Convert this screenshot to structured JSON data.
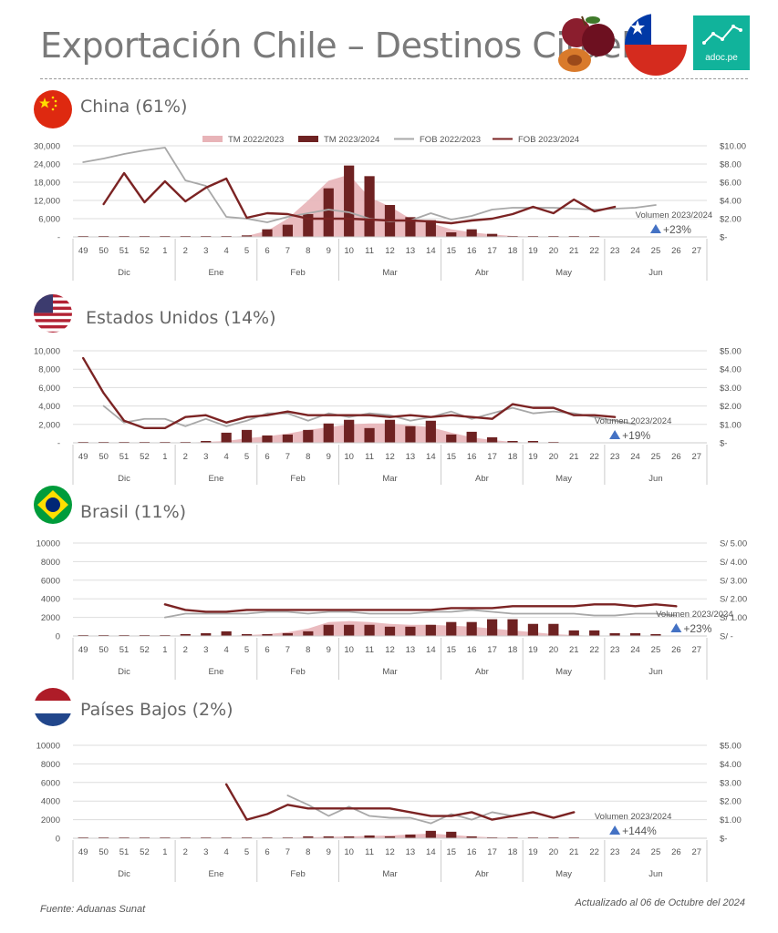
{
  "page": {
    "title": "Exportación Chile – Destinos Ciruela",
    "logo_text": "adoc.pe",
    "source": "Fuente: Aduanas Sunat",
    "updated": "Actualizado al 06 de Octubre del 2024"
  },
  "colors": {
    "tm_prev": "#e8b4b8",
    "tm_curr": "#6e2222",
    "fob_prev": "#a8a8a8",
    "fob_curr": "#7b2323",
    "arrow": "#4472c4",
    "grid": "#dddddd",
    "adoc": "#11b39b"
  },
  "legend": [
    "TM 2022/2023",
    "TM 2023/2024",
    "FOB 2022/2023",
    "FOB 2023/2024"
  ],
  "chart_data": [
    {
      "type": "bar+line",
      "title": "China (61%)",
      "flag": "china-flag",
      "weeks": [
        "49",
        "50",
        "51",
        "52",
        "1",
        "2",
        "3",
        "4",
        "5",
        "6",
        "7",
        "8",
        "9",
        "10",
        "11",
        "12",
        "13",
        "14",
        "15",
        "16",
        "17",
        "18",
        "19",
        "20",
        "21",
        "22",
        "23",
        "24",
        "25",
        "26",
        "27"
      ],
      "months": [
        {
          "label": "Dic",
          "start": 0,
          "end": 4
        },
        {
          "label": "Ene",
          "start": 5,
          "end": 8
        },
        {
          "label": "Feb",
          "start": 9,
          "end": 12
        },
        {
          "label": "Mar",
          "start": 13,
          "end": 17
        },
        {
          "label": "Abr",
          "start": 18,
          "end": 21
        },
        {
          "label": "May",
          "start": 22,
          "end": 25
        },
        {
          "label": "Jun",
          "start": 26,
          "end": 30
        }
      ],
      "y_left_ticks": [
        "30,000",
        "24,000",
        "18,000",
        "12,000",
        "6,000",
        "-"
      ],
      "y_left_max": 30000,
      "y_right_ticks": [
        "$10.00",
        "$8.00",
        "$6.00",
        "$4.00",
        "$2.00",
        "$-"
      ],
      "y_right_max": 10,
      "tm_2022_2023": [
        0,
        0,
        0,
        0,
        0,
        0,
        0,
        0,
        300,
        2000,
        6000,
        12000,
        18500,
        20500,
        13000,
        10000,
        6000,
        4500,
        2500,
        1500,
        800,
        300,
        100,
        0,
        0,
        0,
        0,
        0,
        0,
        0,
        0
      ],
      "tm_2023_2024": [
        0,
        100,
        100,
        100,
        100,
        100,
        100,
        200,
        500,
        2500,
        4000,
        7500,
        16000,
        23500,
        20000,
        10500,
        6500,
        5500,
        1500,
        2500,
        1000,
        300,
        100,
        100,
        100,
        100,
        null,
        null,
        null,
        null,
        null
      ],
      "fob_2022_2023": [
        8.2,
        8.6,
        9.1,
        9.5,
        9.8,
        6.2,
        5.6,
        2.2,
        2.0,
        1.6,
        2.2,
        2.6,
        3.0,
        2.7,
        2.0,
        1.7,
        1.8,
        2.6,
        1.9,
        2.3,
        3.0,
        3.2,
        3.2,
        3.2,
        3.1,
        3.0,
        3.1,
        3.2,
        3.5,
        null,
        null
      ],
      "fob_2023_2024": [
        null,
        3.6,
        7.0,
        3.8,
        6.1,
        3.9,
        5.4,
        6.4,
        2.1,
        2.6,
        2.5,
        2.0,
        2.0,
        2.0,
        1.9,
        1.8,
        1.8,
        1.7,
        1.5,
        1.8,
        2.0,
        2.5,
        3.3,
        2.6,
        4.1,
        2.8,
        3.3,
        null,
        null,
        null,
        null
      ],
      "annotation_label": "Volumen 2023/2024",
      "annotation_value": "+23%",
      "annotation_week_index": 28
    },
    {
      "type": "bar+line",
      "title": "Estados Unidos (14%)",
      "flag": "usa-flag",
      "weeks": [
        "49",
        "50",
        "51",
        "52",
        "1",
        "2",
        "3",
        "4",
        "5",
        "6",
        "7",
        "8",
        "9",
        "10",
        "11",
        "12",
        "13",
        "14",
        "15",
        "16",
        "17",
        "18",
        "19",
        "20",
        "21",
        "22",
        "23",
        "24",
        "25",
        "26",
        "27"
      ],
      "months": [
        {
          "label": "Dic",
          "start": 0,
          "end": 4
        },
        {
          "label": "Ene",
          "start": 5,
          "end": 8
        },
        {
          "label": "Feb",
          "start": 9,
          "end": 12
        },
        {
          "label": "Mar",
          "start": 13,
          "end": 17
        },
        {
          "label": "Abr",
          "start": 18,
          "end": 21
        },
        {
          "label": "May",
          "start": 22,
          "end": 25
        },
        {
          "label": "Jun",
          "start": 26,
          "end": 30
        }
      ],
      "y_left_ticks": [
        "10,000",
        "8,000",
        "6,000",
        "4,000",
        "2,000",
        "-"
      ],
      "y_left_max": 10000,
      "y_right_ticks": [
        "$5.00",
        "$4.00",
        "$3.00",
        "$2.00",
        "$1.00",
        "$-"
      ],
      "y_right_max": 5,
      "tm_2022_2023": [
        0,
        0,
        0,
        0,
        0,
        0,
        100,
        200,
        500,
        700,
        1000,
        1400,
        1700,
        2000,
        2100,
        2100,
        1900,
        1700,
        1100,
        600,
        300,
        100,
        0,
        0,
        0,
        0,
        0,
        0,
        0,
        0,
        0
      ],
      "tm_2023_2024": [
        0,
        0,
        0,
        0,
        0,
        0,
        200,
        1100,
        1400,
        800,
        900,
        1400,
        2100,
        2500,
        1600,
        2500,
        1800,
        2400,
        900,
        1200,
        600,
        200,
        200,
        100,
        null,
        null,
        null,
        null,
        null,
        null,
        null
      ],
      "fob_2022_2023": [
        null,
        2.0,
        1.1,
        1.3,
        1.3,
        0.9,
        1.3,
        0.9,
        1.2,
        1.6,
        1.6,
        1.2,
        1.6,
        1.4,
        1.6,
        1.5,
        1.2,
        1.4,
        1.7,
        1.3,
        1.6,
        1.9,
        1.6,
        1.7,
        1.6,
        1.4,
        1.2,
        1.0,
        null,
        null,
        null
      ],
      "fob_2023_2024": [
        4.6,
        2.7,
        1.2,
        0.8,
        0.8,
        1.4,
        1.5,
        1.1,
        1.4,
        1.5,
        1.7,
        1.5,
        1.5,
        1.5,
        1.5,
        1.4,
        1.5,
        1.4,
        1.5,
        1.4,
        1.3,
        2.1,
        1.9,
        1.9,
        1.5,
        1.5,
        1.4,
        null,
        null,
        null,
        null
      ],
      "annotation_label": "Volumen 2023/2024",
      "annotation_value": "+19%",
      "annotation_week_index": 26
    },
    {
      "type": "bar+line",
      "title": "Brasil (11%)",
      "flag": "brazil-flag",
      "weeks": [
        "49",
        "50",
        "51",
        "52",
        "1",
        "2",
        "3",
        "4",
        "5",
        "6",
        "7",
        "8",
        "9",
        "10",
        "11",
        "12",
        "13",
        "14",
        "15",
        "16",
        "17",
        "18",
        "19",
        "20",
        "21",
        "22",
        "23",
        "24",
        "25",
        "26",
        "27"
      ],
      "months": [
        {
          "label": "Dic",
          "start": 0,
          "end": 4
        },
        {
          "label": "Ene",
          "start": 5,
          "end": 8
        },
        {
          "label": "Feb",
          "start": 9,
          "end": 12
        },
        {
          "label": "Mar",
          "start": 13,
          "end": 17
        },
        {
          "label": "Abr",
          "start": 18,
          "end": 21
        },
        {
          "label": "May",
          "start": 22,
          "end": 25
        },
        {
          "label": "Jun",
          "start": 26,
          "end": 30
        }
      ],
      "y_left_ticks": [
        "10000",
        "8000",
        "6000",
        "4000",
        "2000",
        "0"
      ],
      "y_left_max": 10000,
      "y_right_ticks": [
        "S/ 5.00",
        "S/ 4.00",
        "S/ 3.00",
        "S/ 2.00",
        "S/ 1.00",
        "S/ -"
      ],
      "y_right_max": 5,
      "tm_2022_2023": [
        0,
        0,
        0,
        0,
        0,
        0,
        0,
        0,
        100,
        200,
        400,
        800,
        1500,
        1600,
        1500,
        1300,
        1200,
        1200,
        1100,
        1000,
        800,
        600,
        400,
        200,
        100,
        0,
        0,
        0,
        0,
        0,
        0
      ],
      "tm_2023_2024": [
        0,
        0,
        0,
        0,
        0,
        200,
        300,
        500,
        200,
        200,
        300,
        500,
        1200,
        1200,
        1200,
        1000,
        1000,
        1200,
        1500,
        1500,
        1800,
        1800,
        1300,
        1300,
        600,
        600,
        300,
        300,
        200,
        null,
        null
      ],
      "fob_2022_2023": [
        null,
        null,
        null,
        null,
        1.0,
        1.2,
        1.2,
        1.2,
        1.2,
        1.3,
        1.3,
        1.2,
        1.3,
        1.3,
        1.2,
        1.2,
        1.2,
        1.3,
        1.3,
        1.4,
        1.3,
        1.2,
        1.2,
        1.2,
        1.2,
        1.1,
        1.1,
        1.2,
        1.2,
        1.1,
        null
      ],
      "fob_2023_2024": [
        null,
        null,
        null,
        null,
        1.7,
        1.4,
        1.3,
        1.3,
        1.4,
        1.4,
        1.4,
        1.4,
        1.4,
        1.4,
        1.4,
        1.4,
        1.4,
        1.4,
        1.5,
        1.5,
        1.5,
        1.6,
        1.6,
        1.6,
        1.6,
        1.7,
        1.7,
        1.6,
        1.7,
        1.6,
        null
      ],
      "annotation_label": "Volumen 2023/2024",
      "annotation_value": "+23%",
      "annotation_week_index": 29
    },
    {
      "type": "bar+line",
      "title": "Países Bajos (2%)",
      "flag": "netherlands-flag",
      "weeks": [
        "49",
        "50",
        "51",
        "52",
        "1",
        "2",
        "3",
        "4",
        "5",
        "6",
        "7",
        "8",
        "9",
        "10",
        "11",
        "12",
        "13",
        "14",
        "15",
        "16",
        "17",
        "18",
        "19",
        "20",
        "21",
        "22",
        "23",
        "24",
        "25",
        "26",
        "27"
      ],
      "months": [
        {
          "label": "Dic",
          "start": 0,
          "end": 4
        },
        {
          "label": "Ene",
          "start": 5,
          "end": 8
        },
        {
          "label": "Feb",
          "start": 9,
          "end": 12
        },
        {
          "label": "Mar",
          "start": 13,
          "end": 17
        },
        {
          "label": "Abr",
          "start": 18,
          "end": 21
        },
        {
          "label": "May",
          "start": 22,
          "end": 25
        },
        {
          "label": "Jun",
          "start": 26,
          "end": 30
        }
      ],
      "y_left_ticks": [
        "10000",
        "8000",
        "6000",
        "4000",
        "2000",
        "0"
      ],
      "y_left_max": 10000,
      "y_right_ticks": [
        "$5.00",
        "$4.00",
        "$3.00",
        "$2.00",
        "$1.00",
        "$-"
      ],
      "y_right_max": 5,
      "tm_2022_2023": [
        0,
        0,
        0,
        0,
        0,
        0,
        0,
        0,
        0,
        0,
        50,
        100,
        150,
        200,
        250,
        300,
        400,
        500,
        350,
        200,
        100,
        50,
        0,
        0,
        0,
        0,
        0,
        0,
        0,
        0,
        0
      ],
      "tm_2023_2024": [
        0,
        0,
        0,
        0,
        0,
        0,
        0,
        100,
        100,
        100,
        100,
        200,
        200,
        200,
        300,
        200,
        400,
        800,
        700,
        200,
        100,
        100,
        100,
        100,
        100,
        null,
        null,
        null,
        null,
        null,
        null
      ],
      "fob_2022_2023": [
        null,
        null,
        null,
        null,
        null,
        null,
        null,
        null,
        null,
        null,
        2.3,
        1.8,
        1.2,
        1.7,
        1.2,
        1.1,
        1.1,
        0.8,
        1.3,
        1.0,
        1.4,
        1.2,
        null,
        null,
        null,
        null,
        null,
        null,
        null,
        null,
        null
      ],
      "fob_2023_2024": [
        null,
        null,
        null,
        null,
        null,
        null,
        null,
        2.9,
        1.0,
        1.3,
        1.8,
        1.6,
        1.6,
        1.6,
        1.6,
        1.6,
        1.4,
        1.2,
        1.2,
        1.4,
        1.0,
        1.2,
        1.4,
        1.1,
        1.4,
        null,
        null,
        null,
        null,
        null,
        null
      ],
      "annotation_label": "Volumen 2023/2024",
      "annotation_value": "+144%",
      "annotation_week_index": 26
    }
  ]
}
